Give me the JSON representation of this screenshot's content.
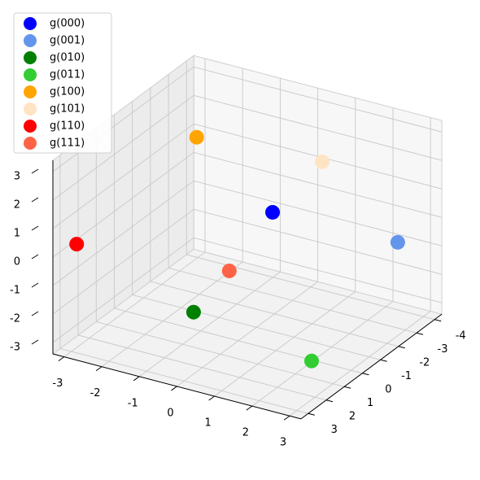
{
  "chart_data": {
    "type": "scatter3d",
    "xlim": [
      -3.3,
      3.3
    ],
    "ylim": [
      -4.4,
      3.4
    ],
    "zlim": [
      -3.4,
      3.4
    ],
    "xticks": [
      -3,
      -2,
      -1,
      0,
      1,
      2,
      3
    ],
    "yticks": [
      -4,
      -3,
      -2,
      -1,
      0,
      1,
      2,
      3
    ],
    "zticks": [
      -3,
      -2,
      -1,
      0,
      1,
      2,
      3
    ],
    "grid": true,
    "legend": "upper left",
    "series": [
      {
        "name": "g(000)",
        "color": "#0000ff",
        "x": [
          -0.05
        ],
        "y": [
          -2
        ],
        "z": [
          0.15
        ]
      },
      {
        "name": "g(001)",
        "color": "#6495ed",
        "x": [
          2.8
        ],
        "y": [
          -3
        ],
        "z": [
          -0.39
        ]
      },
      {
        "name": "g(010)",
        "color": "#008000",
        "x": [
          -0.71
        ],
        "y": [
          1
        ],
        "z": [
          -2.17
        ]
      },
      {
        "name": "g(011)",
        "color": "#32cd32",
        "x": [
          2.67
        ],
        "y": [
          1.5
        ],
        "z": [
          -2.48
        ]
      },
      {
        "name": "g(100)",
        "color": "#ffa500",
        "x": [
          -2.55
        ],
        "y": [
          -3
        ],
        "z": [
          1.45
        ]
      },
      {
        "name": "g(101)",
        "color": "#ffe4c4",
        "x": [
          1.27
        ],
        "y": [
          -2
        ],
        "z": [
          2.38
        ]
      },
      {
        "name": "g(110)",
        "color": "#ff0000",
        "x": [
          -3.1
        ],
        "y": [
          2.5
        ],
        "z": [
          0.1
        ]
      },
      {
        "name": "g(111)",
        "color": "#ff6347",
        "x": [
          -0.24
        ],
        "y": [
          0
        ],
        "z": [
          -1.03
        ]
      }
    ]
  }
}
